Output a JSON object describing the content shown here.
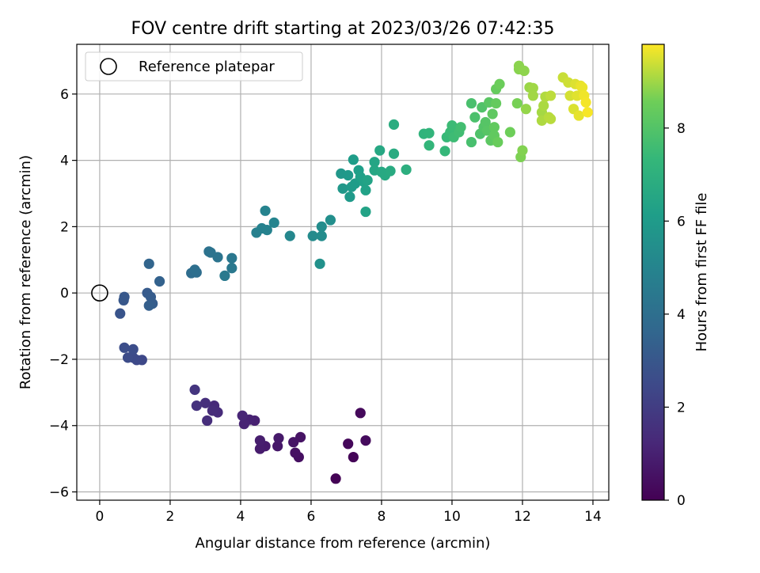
{
  "chart_data": {
    "type": "scatter",
    "title": "FOV centre drift starting at 2023/03/26 07:42:35",
    "xlabel": "Angular distance from reference (arcmin)",
    "ylabel": "Rotation from reference (arcmin)",
    "xlim": [
      -0.65,
      14.45
    ],
    "ylim": [
      -6.25,
      7.5
    ],
    "xticks": [
      0,
      2,
      4,
      6,
      8,
      10,
      12,
      14
    ],
    "yticks": [
      -6,
      -4,
      -2,
      0,
      2,
      4,
      6
    ],
    "grid": true,
    "legend": {
      "placement": "top-left",
      "entries": [
        "Reference platepar"
      ]
    },
    "reference_point": {
      "x": 0,
      "y": 0
    },
    "colorbar": {
      "label": "Hours from first FF file",
      "range": [
        0,
        9.8
      ],
      "ticks": [
        0,
        2,
        4,
        6,
        8
      ],
      "colormap": "viridis"
    },
    "points": [
      {
        "x": 6.7,
        "y": -5.6,
        "c": 0.05
      },
      {
        "x": 7.2,
        "y": -4.95,
        "c": 0.1
      },
      {
        "x": 7.05,
        "y": -4.55,
        "c": 0.2
      },
      {
        "x": 7.4,
        "y": -3.62,
        "c": 0.25
      },
      {
        "x": 7.55,
        "y": -4.45,
        "c": 0.3
      },
      {
        "x": 5.65,
        "y": -4.95,
        "c": 0.45
      },
      {
        "x": 5.55,
        "y": -4.82,
        "c": 0.5
      },
      {
        "x": 5.7,
        "y": -4.35,
        "c": 0.55
      },
      {
        "x": 5.5,
        "y": -4.5,
        "c": 0.6
      },
      {
        "x": 5.05,
        "y": -4.62,
        "c": 0.7
      },
      {
        "x": 5.08,
        "y": -4.38,
        "c": 0.75
      },
      {
        "x": 4.7,
        "y": -4.62,
        "c": 0.8
      },
      {
        "x": 4.55,
        "y": -4.7,
        "c": 0.85
      },
      {
        "x": 4.55,
        "y": -4.45,
        "c": 0.9
      },
      {
        "x": 4.4,
        "y": -3.85,
        "c": 1.0
      },
      {
        "x": 4.25,
        "y": -3.82,
        "c": 1.05
      },
      {
        "x": 4.1,
        "y": -3.95,
        "c": 1.1
      },
      {
        "x": 4.05,
        "y": -3.7,
        "c": 1.15
      },
      {
        "x": 3.25,
        "y": -3.4,
        "c": 1.3
      },
      {
        "x": 3.35,
        "y": -3.6,
        "c": 1.35
      },
      {
        "x": 3.2,
        "y": -3.55,
        "c": 1.4
      },
      {
        "x": 3.05,
        "y": -3.85,
        "c": 1.45
      },
      {
        "x": 3.0,
        "y": -3.32,
        "c": 1.5
      },
      {
        "x": 2.75,
        "y": -3.4,
        "c": 1.6
      },
      {
        "x": 2.7,
        "y": -2.92,
        "c": 1.7
      },
      {
        "x": 1.2,
        "y": -2.02,
        "c": 2.4
      },
      {
        "x": 1.05,
        "y": -2.02,
        "c": 2.45
      },
      {
        "x": 0.95,
        "y": -1.95,
        "c": 2.5
      },
      {
        "x": 0.8,
        "y": -1.95,
        "c": 2.55
      },
      {
        "x": 0.95,
        "y": -1.7,
        "c": 2.6
      },
      {
        "x": 0.7,
        "y": -1.65,
        "c": 2.65
      },
      {
        "x": 0.58,
        "y": -0.62,
        "c": 2.9
      },
      {
        "x": 0.68,
        "y": -0.22,
        "c": 3.0
      },
      {
        "x": 0.7,
        "y": -0.12,
        "c": 3.05
      },
      {
        "x": 1.35,
        "y": 0.0,
        "c": 3.15
      },
      {
        "x": 1.45,
        "y": -0.12,
        "c": 3.2
      },
      {
        "x": 1.5,
        "y": -0.32,
        "c": 3.25
      },
      {
        "x": 1.4,
        "y": -0.38,
        "c": 3.3
      },
      {
        "x": 1.7,
        "y": 0.35,
        "c": 3.45
      },
      {
        "x": 1.4,
        "y": 0.88,
        "c": 3.55
      },
      {
        "x": 2.6,
        "y": 0.6,
        "c": 3.9
      },
      {
        "x": 2.75,
        "y": 0.62,
        "c": 3.95
      },
      {
        "x": 2.7,
        "y": 0.7,
        "c": 4.0
      },
      {
        "x": 3.1,
        "y": 1.25,
        "c": 4.15
      },
      {
        "x": 3.15,
        "y": 1.22,
        "c": 4.2
      },
      {
        "x": 3.35,
        "y": 1.08,
        "c": 4.25
      },
      {
        "x": 3.75,
        "y": 1.05,
        "c": 4.4
      },
      {
        "x": 3.75,
        "y": 0.75,
        "c": 4.45
      },
      {
        "x": 3.55,
        "y": 0.52,
        "c": 4.5
      },
      {
        "x": 4.45,
        "y": 1.82,
        "c": 4.8
      },
      {
        "x": 4.6,
        "y": 1.95,
        "c": 4.85
      },
      {
        "x": 4.75,
        "y": 1.9,
        "c": 4.9
      },
      {
        "x": 4.7,
        "y": 2.48,
        "c": 4.95
      },
      {
        "x": 4.95,
        "y": 2.12,
        "c": 5.0
      },
      {
        "x": 5.4,
        "y": 1.72,
        "c": 5.1
      },
      {
        "x": 6.05,
        "y": 1.72,
        "c": 5.3
      },
      {
        "x": 6.3,
        "y": 1.72,
        "c": 5.35
      },
      {
        "x": 6.3,
        "y": 2.0,
        "c": 5.4
      },
      {
        "x": 6.55,
        "y": 2.2,
        "c": 5.45
      },
      {
        "x": 6.25,
        "y": 0.88,
        "c": 5.55
      },
      {
        "x": 6.85,
        "y": 3.6,
        "c": 5.8
      },
      {
        "x": 6.9,
        "y": 3.15,
        "c": 5.85
      },
      {
        "x": 7.05,
        "y": 3.55,
        "c": 5.9
      },
      {
        "x": 7.1,
        "y": 2.9,
        "c": 5.95
      },
      {
        "x": 7.15,
        "y": 3.2,
        "c": 6.0
      },
      {
        "x": 7.25,
        "y": 3.3,
        "c": 6.05
      },
      {
        "x": 7.2,
        "y": 4.02,
        "c": 6.1
      },
      {
        "x": 7.35,
        "y": 3.7,
        "c": 6.15
      },
      {
        "x": 7.4,
        "y": 3.5,
        "c": 6.2
      },
      {
        "x": 7.5,
        "y": 3.35,
        "c": 6.25
      },
      {
        "x": 7.55,
        "y": 3.1,
        "c": 6.3
      },
      {
        "x": 7.6,
        "y": 3.4,
        "c": 6.35
      },
      {
        "x": 7.55,
        "y": 2.45,
        "c": 6.35
      },
      {
        "x": 7.8,
        "y": 3.95,
        "c": 6.45
      },
      {
        "x": 7.8,
        "y": 3.7,
        "c": 6.5
      },
      {
        "x": 7.95,
        "y": 4.3,
        "c": 6.55
      },
      {
        "x": 8.0,
        "y": 3.65,
        "c": 6.6
      },
      {
        "x": 8.1,
        "y": 3.55,
        "c": 6.65
      },
      {
        "x": 8.25,
        "y": 3.68,
        "c": 6.7
      },
      {
        "x": 8.35,
        "y": 4.2,
        "c": 6.75
      },
      {
        "x": 8.35,
        "y": 5.08,
        "c": 6.8
      },
      {
        "x": 8.7,
        "y": 3.72,
        "c": 6.9
      },
      {
        "x": 9.2,
        "y": 4.8,
        "c": 7.15
      },
      {
        "x": 9.35,
        "y": 4.82,
        "c": 7.2
      },
      {
        "x": 9.35,
        "y": 4.45,
        "c": 7.25
      },
      {
        "x": 9.8,
        "y": 4.28,
        "c": 7.35
      },
      {
        "x": 9.85,
        "y": 4.7,
        "c": 7.4
      },
      {
        "x": 9.95,
        "y": 4.85,
        "c": 7.45
      },
      {
        "x": 10.0,
        "y": 5.05,
        "c": 7.5
      },
      {
        "x": 10.05,
        "y": 4.7,
        "c": 7.55
      },
      {
        "x": 10.2,
        "y": 4.85,
        "c": 7.6
      },
      {
        "x": 10.25,
        "y": 5.0,
        "c": 7.65
      },
      {
        "x": 10.55,
        "y": 4.55,
        "c": 7.75
      },
      {
        "x": 10.55,
        "y": 5.72,
        "c": 7.8
      },
      {
        "x": 10.65,
        "y": 5.3,
        "c": 7.85
      },
      {
        "x": 10.8,
        "y": 4.8,
        "c": 7.9
      },
      {
        "x": 10.85,
        "y": 5.6,
        "c": 7.95
      },
      {
        "x": 10.9,
        "y": 5.0,
        "c": 8.0
      },
      {
        "x": 10.95,
        "y": 5.15,
        "c": 8.05
      },
      {
        "x": 11.0,
        "y": 4.9,
        "c": 8.1
      },
      {
        "x": 11.05,
        "y": 5.75,
        "c": 8.15
      },
      {
        "x": 11.1,
        "y": 4.6,
        "c": 8.2
      },
      {
        "x": 11.15,
        "y": 5.4,
        "c": 8.25
      },
      {
        "x": 11.2,
        "y": 5.0,
        "c": 8.3
      },
      {
        "x": 11.2,
        "y": 4.75,
        "c": 8.3
      },
      {
        "x": 11.25,
        "y": 5.72,
        "c": 8.35
      },
      {
        "x": 11.25,
        "y": 6.15,
        "c": 8.4
      },
      {
        "x": 11.3,
        "y": 4.55,
        "c": 8.45
      },
      {
        "x": 11.35,
        "y": 6.3,
        "c": 8.5
      },
      {
        "x": 11.65,
        "y": 4.85,
        "c": 8.55
      },
      {
        "x": 11.85,
        "y": 5.72,
        "c": 8.65
      },
      {
        "x": 11.95,
        "y": 4.1,
        "c": 8.7
      },
      {
        "x": 12.0,
        "y": 4.3,
        "c": 8.75
      },
      {
        "x": 11.9,
        "y": 6.75,
        "c": 8.8
      },
      {
        "x": 11.9,
        "y": 6.85,
        "c": 8.82
      },
      {
        "x": 12.05,
        "y": 6.7,
        "c": 8.85
      },
      {
        "x": 12.1,
        "y": 5.55,
        "c": 8.9
      },
      {
        "x": 12.2,
        "y": 6.2,
        "c": 8.95
      },
      {
        "x": 12.3,
        "y": 6.18,
        "c": 9.0
      },
      {
        "x": 12.3,
        "y": 5.95,
        "c": 9.02
      },
      {
        "x": 12.55,
        "y": 5.45,
        "c": 9.05
      },
      {
        "x": 12.6,
        "y": 5.65,
        "c": 9.1
      },
      {
        "x": 12.55,
        "y": 5.2,
        "c": 9.12
      },
      {
        "x": 12.65,
        "y": 5.92,
        "c": 9.15
      },
      {
        "x": 12.75,
        "y": 5.3,
        "c": 9.2
      },
      {
        "x": 12.8,
        "y": 5.25,
        "c": 9.22
      },
      {
        "x": 12.8,
        "y": 5.95,
        "c": 9.25
      },
      {
        "x": 13.15,
        "y": 6.5,
        "c": 9.35
      },
      {
        "x": 13.3,
        "y": 6.35,
        "c": 9.4
      },
      {
        "x": 13.35,
        "y": 5.95,
        "c": 9.45
      },
      {
        "x": 13.45,
        "y": 5.55,
        "c": 9.5
      },
      {
        "x": 13.5,
        "y": 6.3,
        "c": 9.52
      },
      {
        "x": 13.55,
        "y": 5.95,
        "c": 9.55
      },
      {
        "x": 13.6,
        "y": 5.35,
        "c": 9.6
      },
      {
        "x": 13.65,
        "y": 6.25,
        "c": 9.62
      },
      {
        "x": 13.7,
        "y": 6.2,
        "c": 9.65
      },
      {
        "x": 13.75,
        "y": 5.95,
        "c": 9.68
      },
      {
        "x": 13.8,
        "y": 5.75,
        "c": 9.72
      },
      {
        "x": 13.85,
        "y": 5.45,
        "c": 9.75
      }
    ]
  }
}
